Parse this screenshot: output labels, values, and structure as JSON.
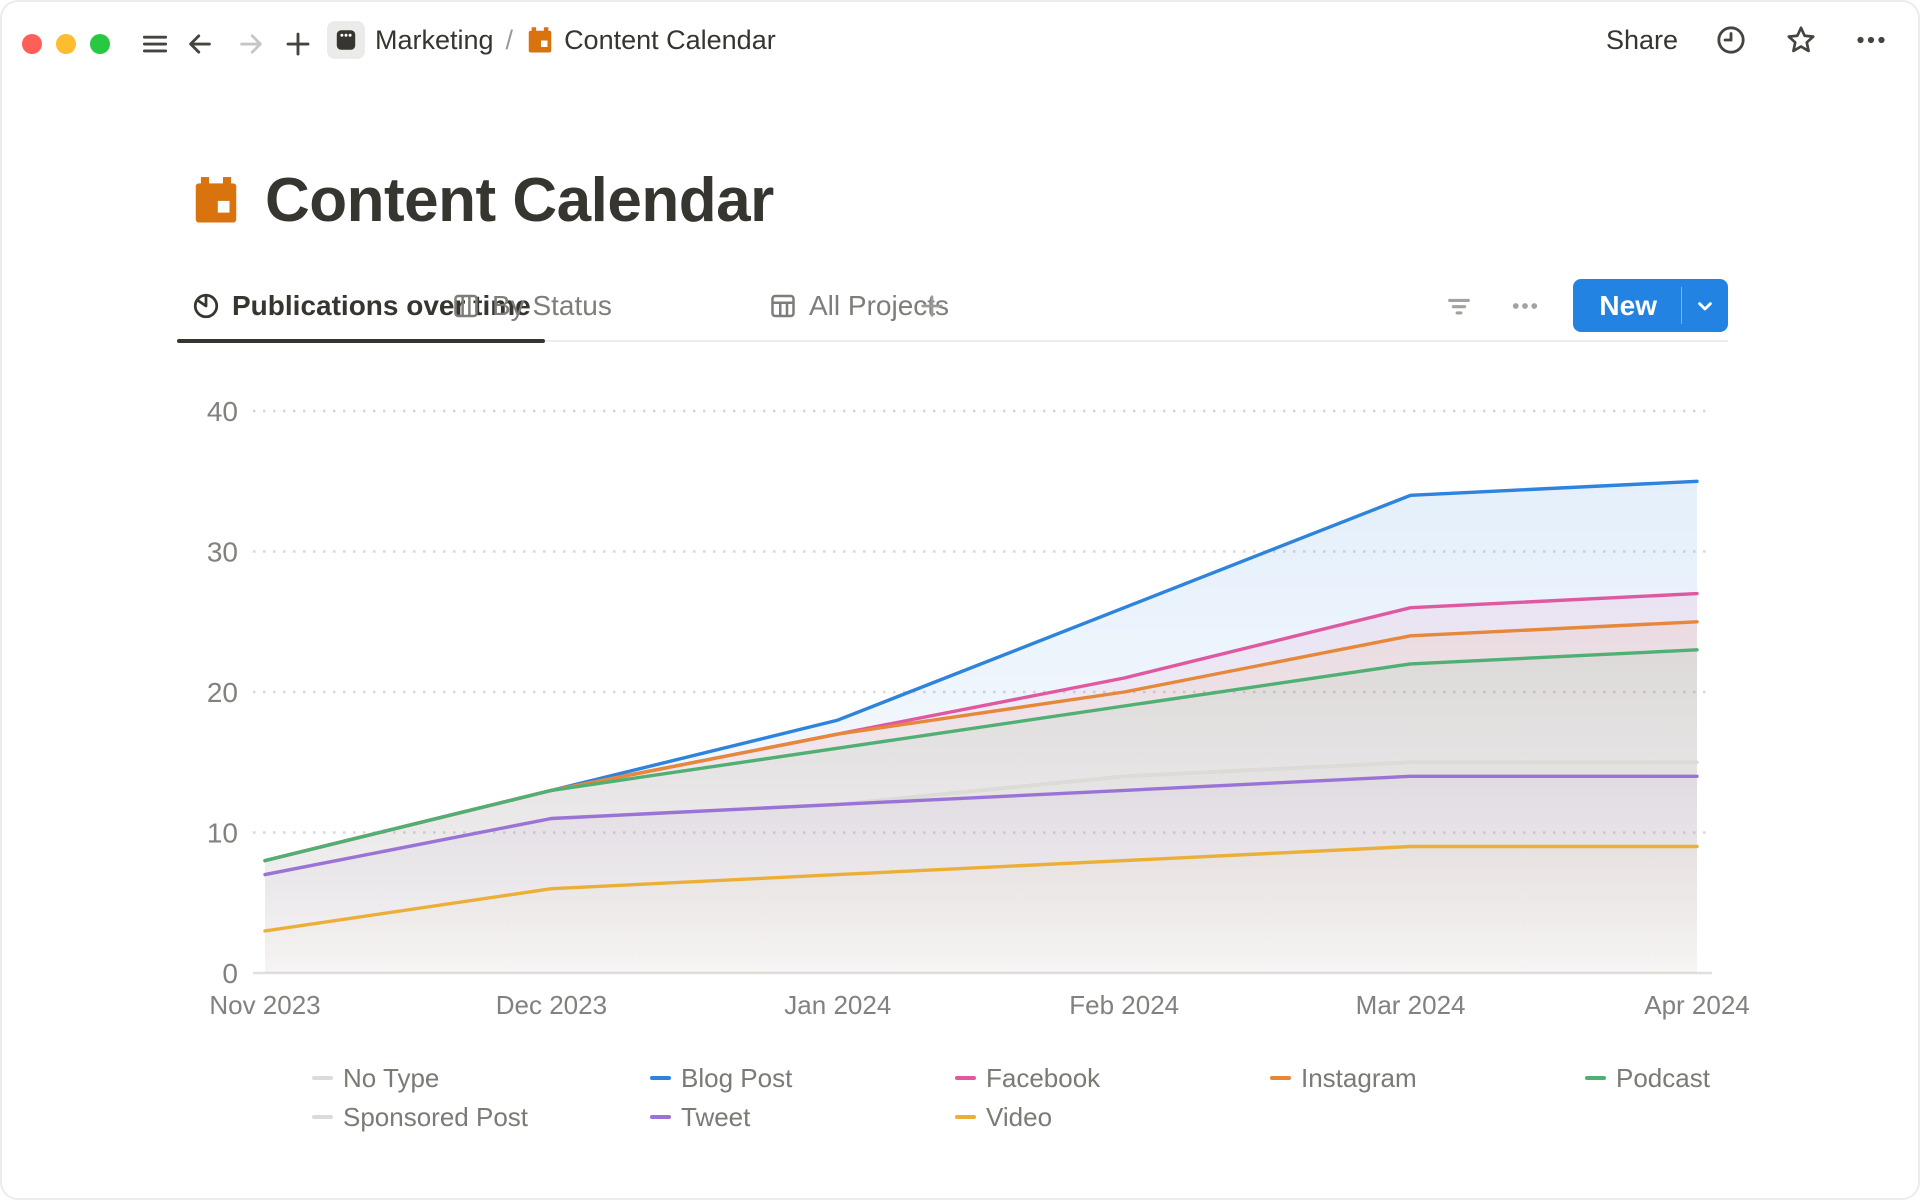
{
  "window": {
    "traffic_lights": [
      "close",
      "minimize",
      "zoom"
    ]
  },
  "topbar": {
    "nav_icons": [
      "hamburger-icon",
      "back-arrow-icon",
      "forward-arrow-icon",
      "plus-icon"
    ],
    "breadcrumb": [
      {
        "label": "Marketing",
        "icon": "board-page-icon"
      },
      {
        "label": "Content Calendar",
        "icon": "calendar-icon"
      }
    ],
    "separator": "/",
    "share_label": "Share",
    "right_icons": [
      "history-clock-icon",
      "star-icon",
      "ellipsis-icon"
    ]
  },
  "page": {
    "title": "Content Calendar",
    "icon": "calendar-icon",
    "icon_color": "#d9730d"
  },
  "view_tabs": {
    "tabs": [
      {
        "label": "Publications over time",
        "icon": "pie-chart-icon",
        "active": true
      },
      {
        "label": "By Status",
        "icon": "board-icon",
        "active": false
      },
      {
        "label": "All Projects",
        "icon": "table-icon",
        "active": false
      }
    ],
    "add_view_icon": "plus-icon",
    "action_icons": [
      "filter-icon",
      "ellipsis-icon"
    ],
    "new_button": {
      "label": "New",
      "color": "#2383e2",
      "caret_icon": "chevron-down-icon"
    }
  },
  "chart_data": {
    "type": "area",
    "title": "Publications over time",
    "x": [
      "Nov 2023",
      "Dec 2023",
      "Jan 2024",
      "Feb 2024",
      "Mar 2024",
      "Apr 2024"
    ],
    "series": [
      {
        "name": "No Type",
        "color": "#dcdbd8",
        "values": [
          7,
          11,
          12,
          14,
          15,
          15
        ]
      },
      {
        "name": "Blog Post",
        "color": "#2e83dd",
        "values": [
          8,
          13,
          18,
          26,
          34,
          35
        ]
      },
      {
        "name": "Facebook",
        "color": "#df58a0",
        "values": [
          8,
          13,
          17,
          21,
          26,
          27
        ]
      },
      {
        "name": "Instagram",
        "color": "#e6873a",
        "values": [
          8,
          13,
          17,
          20,
          24,
          25
        ]
      },
      {
        "name": "Podcast",
        "color": "#50af73",
        "values": [
          8,
          13,
          16,
          19,
          22,
          23
        ]
      },
      {
        "name": "Sponsored Post",
        "color": "#dcdbd8",
        "values": [
          7,
          11,
          12,
          14,
          15,
          15
        ]
      },
      {
        "name": "Tweet",
        "color": "#9b73d7",
        "values": [
          7,
          11,
          12,
          13,
          14,
          14
        ]
      },
      {
        "name": "Video",
        "color": "#ebaf37",
        "values": [
          3,
          6,
          7,
          8,
          9,
          9
        ]
      }
    ],
    "ylim": [
      0,
      40
    ],
    "yticks": [
      0,
      10,
      20,
      30,
      40
    ],
    "grid": "dotted horizontal",
    "legend_position": "bottom"
  }
}
